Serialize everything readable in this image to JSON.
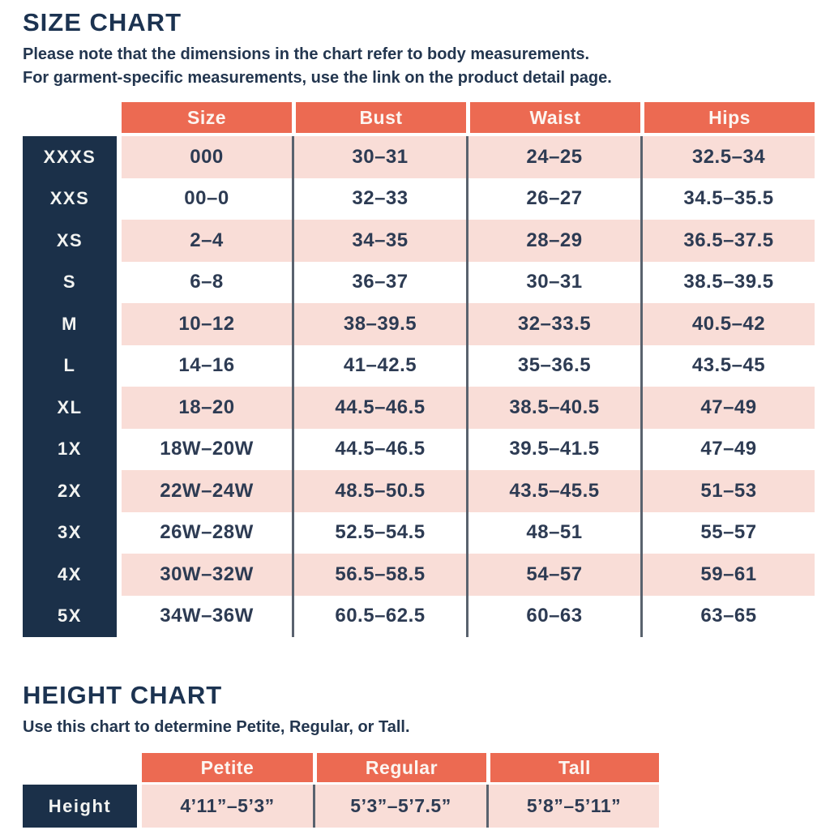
{
  "colors": {
    "coral_header": "#EC6A52",
    "navy_label": "#1B3049",
    "pink_row": "#F9DDD7",
    "text_ink": "#2D3B53",
    "column_divider": "#59626E"
  },
  "size_chart": {
    "title": "SIZE CHART",
    "note_line1": "Please note that the dimensions in the chart refer to body measurements.",
    "note_line2": "For garment-specific measurements, use the link on the product detail page.",
    "columns": {
      "size": "Size",
      "bust": "Bust",
      "waist": "Waist",
      "hips": "Hips"
    },
    "rows": [
      {
        "label": "XXXS",
        "size": "000",
        "bust": "30–31",
        "waist": "24–25",
        "hips": "32.5–34"
      },
      {
        "label": "XXS",
        "size": "00–0",
        "bust": "32–33",
        "waist": "26–27",
        "hips": "34.5–35.5"
      },
      {
        "label": "XS",
        "size": "2–4",
        "bust": "34–35",
        "waist": "28–29",
        "hips": "36.5–37.5"
      },
      {
        "label": "S",
        "size": "6–8",
        "bust": "36–37",
        "waist": "30–31",
        "hips": "38.5–39.5"
      },
      {
        "label": "M",
        "size": "10–12",
        "bust": "38–39.5",
        "waist": "32–33.5",
        "hips": "40.5–42"
      },
      {
        "label": "L",
        "size": "14–16",
        "bust": "41–42.5",
        "waist": "35–36.5",
        "hips": "43.5–45"
      },
      {
        "label": "XL",
        "size": "18–20",
        "bust": "44.5–46.5",
        "waist": "38.5–40.5",
        "hips": "47–49"
      },
      {
        "label": "1X",
        "size": "18W–20W",
        "bust": "44.5–46.5",
        "waist": "39.5–41.5",
        "hips": "47–49"
      },
      {
        "label": "2X",
        "size": "22W–24W",
        "bust": "48.5–50.5",
        "waist": "43.5–45.5",
        "hips": "51–53"
      },
      {
        "label": "3X",
        "size": "26W–28W",
        "bust": "52.5–54.5",
        "waist": "48–51",
        "hips": "55–57"
      },
      {
        "label": "4X",
        "size": "30W–32W",
        "bust": "56.5–58.5",
        "waist": "54–57",
        "hips": "59–61"
      },
      {
        "label": "5X",
        "size": "34W–36W",
        "bust": "60.5–62.5",
        "waist": "60–63",
        "hips": "63–65"
      }
    ]
  },
  "height_chart": {
    "title": "HEIGHT CHART",
    "note": "Use this chart to determine Petite, Regular, or Tall.",
    "columns": {
      "petite": "Petite",
      "regular": "Regular",
      "tall": "Tall"
    },
    "row_label": "Height",
    "values": {
      "petite": "4’11”–5’3”",
      "regular": "5’3”–5’7.5”",
      "tall": "5’8”–5’11”"
    }
  }
}
